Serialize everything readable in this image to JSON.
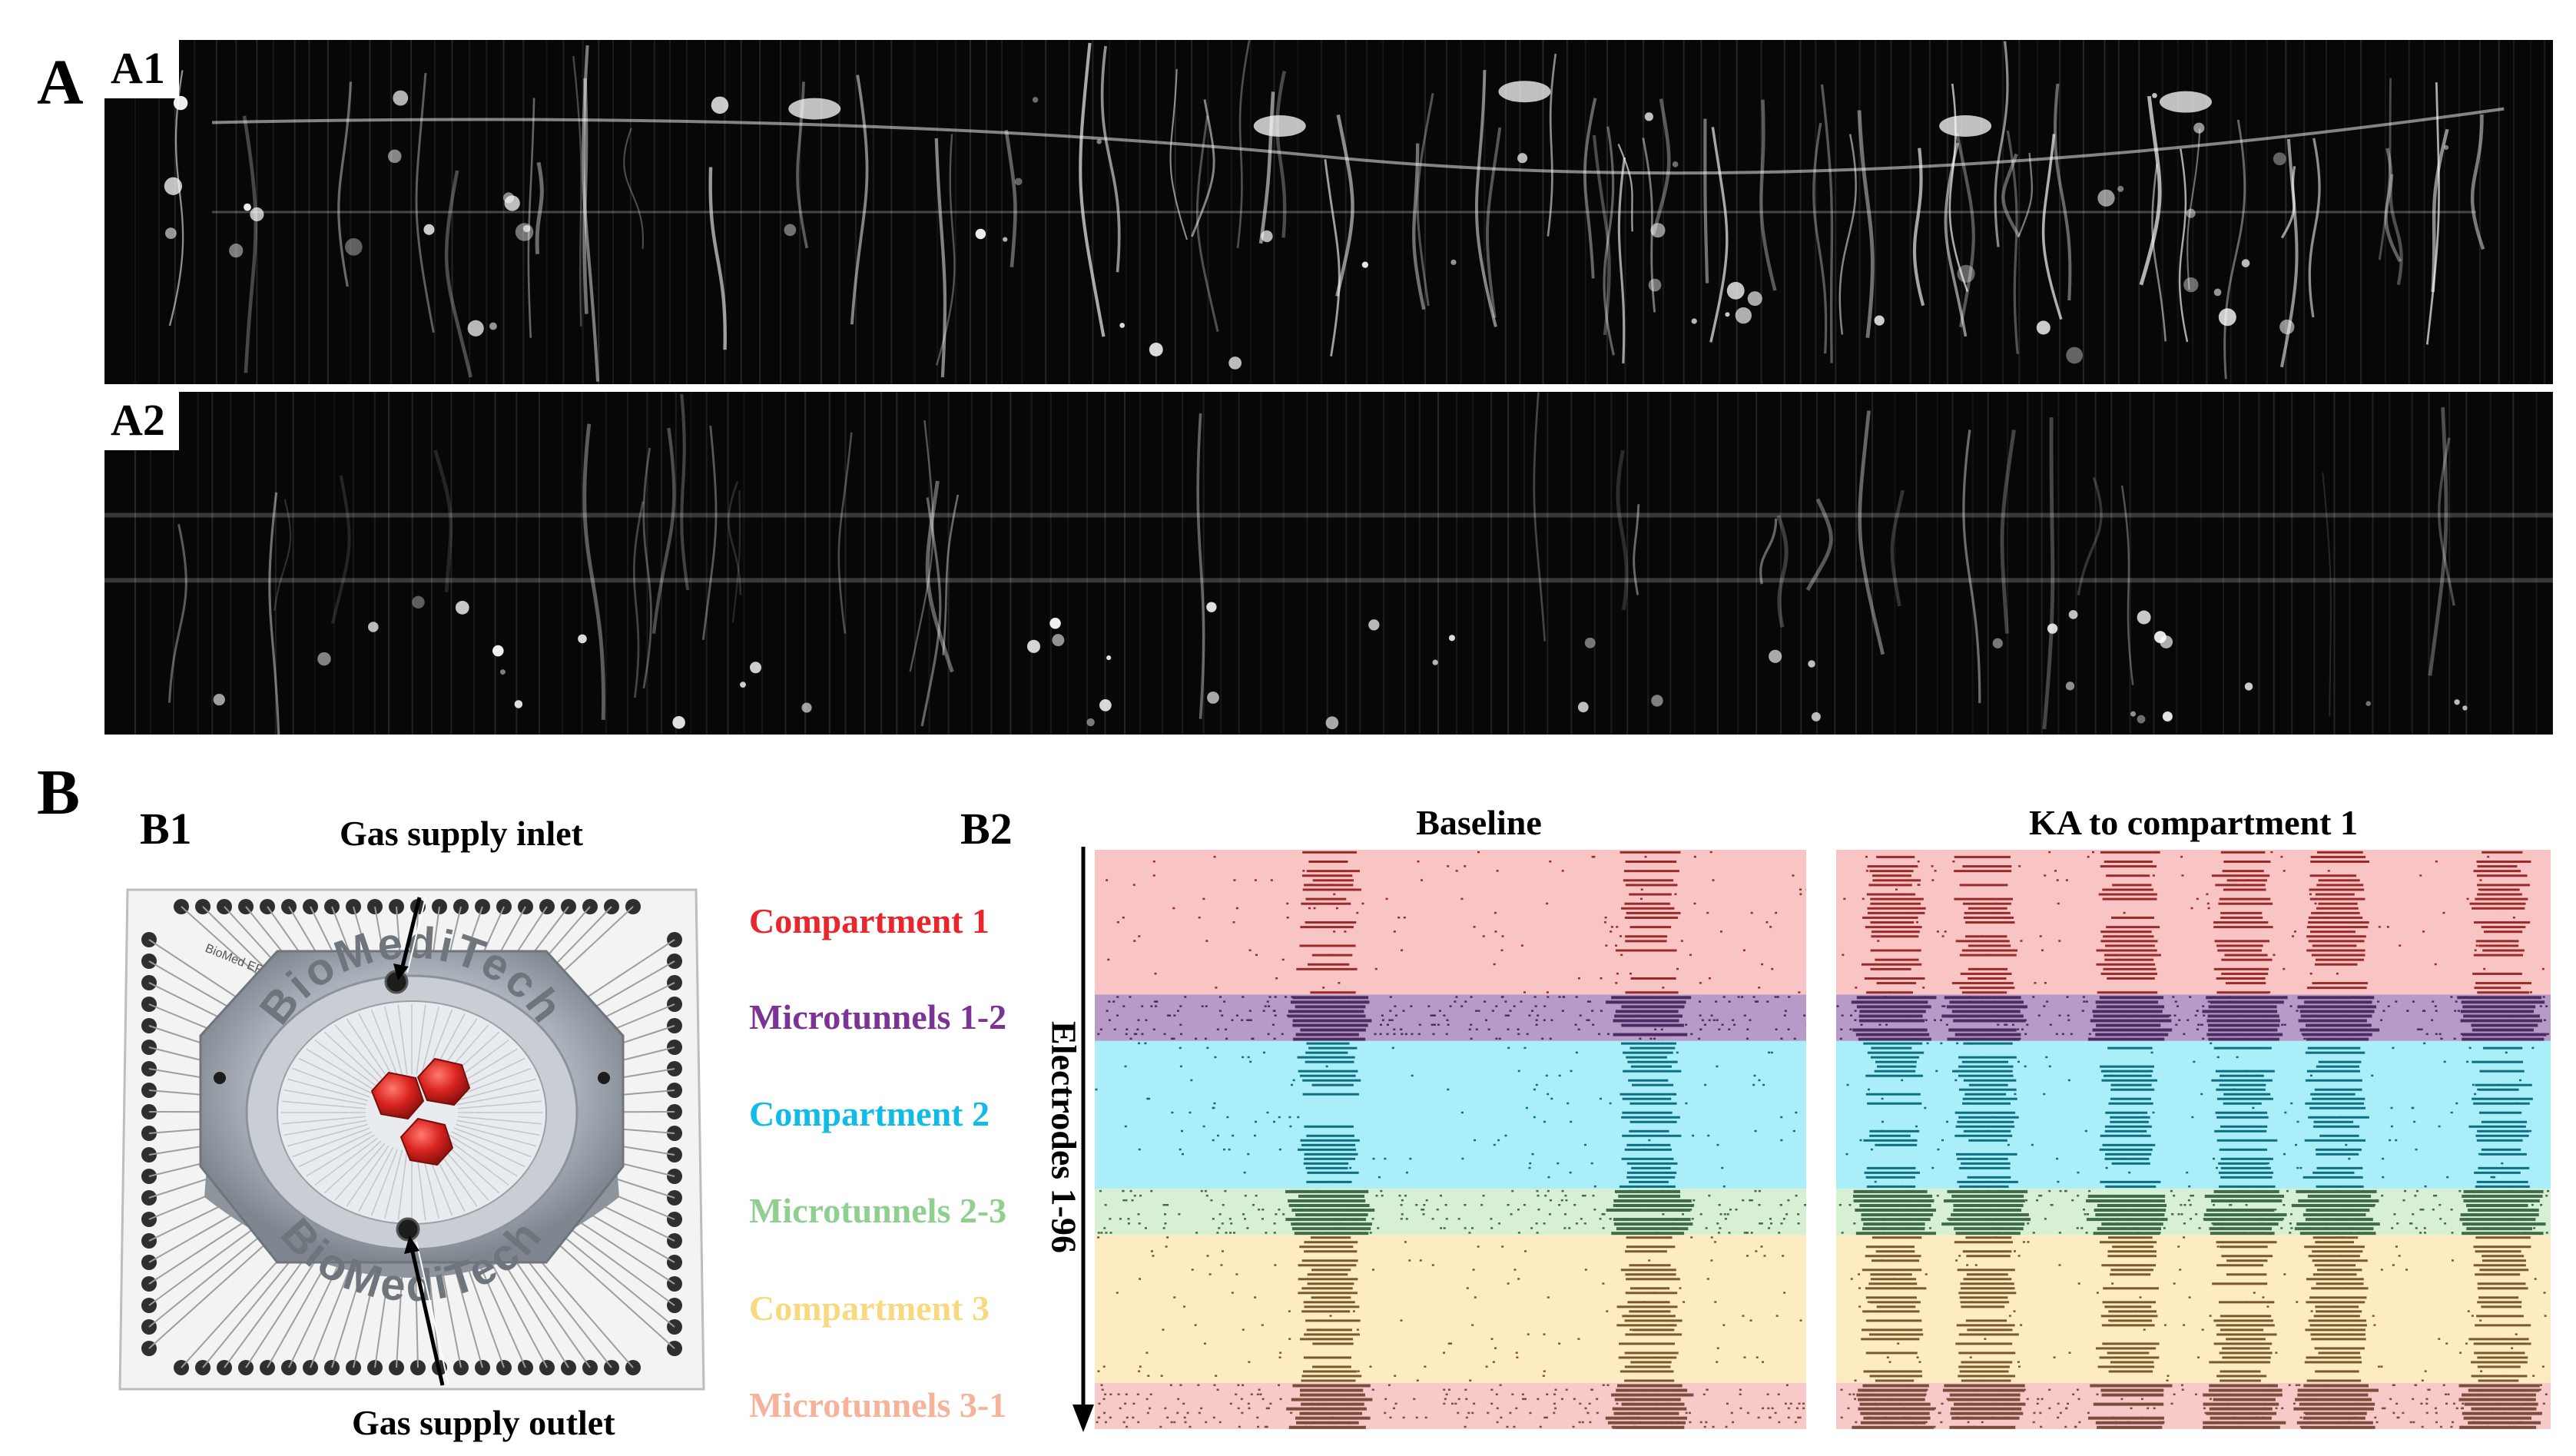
{
  "panel_a": {
    "letter": "A",
    "a1_label": "A1",
    "a2_label": "A2"
  },
  "panel_b": {
    "letter": "B",
    "b1_label": "B1",
    "b2_label": "B2",
    "device": {
      "gas_inlet_label": "Gas supply inlet",
      "gas_outlet_label": "Gas supply outlet",
      "brand_text": "BioMediTech",
      "small_print": "BioMed EPHA",
      "colors": {
        "ring": "#a9afb8",
        "ring_dark": "#7d838c",
        "wells": "#d9231f",
        "pads": "#2f2f2f"
      }
    }
  },
  "chart_data": {
    "type": "raster",
    "ylabel": "Electrodes 1-96",
    "panels": [
      {
        "title": "Baseline",
        "burst_positions": [
          0.33,
          0.78
        ]
      },
      {
        "title": "KA to compartment 1",
        "burst_positions": [
          0.08,
          0.21,
          0.41,
          0.57,
          0.7,
          0.93
        ]
      }
    ],
    "regions": [
      {
        "name": "Compartment 1",
        "label_color": "#e8262b",
        "bg": "#f9c4c4",
        "mark": "#9b2b2b",
        "electrode_fraction": 0.25
      },
      {
        "name": "Microtunnels 1-2",
        "label_color": "#7b3494",
        "bg": "#b79ac7",
        "mark": "#4e2c63",
        "electrode_fraction": 0.08
      },
      {
        "name": "Compartment 2",
        "label_color": "#10bce6",
        "bg": "#aaeefa",
        "mark": "#0d6f80",
        "electrode_fraction": 0.255
      },
      {
        "name": "Microtunnels 2-3",
        "label_color": "#8fcf8f",
        "bg": "#d7efd2",
        "mark": "#3f6b48",
        "electrode_fraction": 0.08
      },
      {
        "name": "Compartment 3",
        "label_color": "#f7da7f",
        "bg": "#fdecc2",
        "mark": "#7a5a2d",
        "electrode_fraction": 0.255
      },
      {
        "name": "Microtunnels 3-1",
        "label_color": "#f6b39b",
        "bg": "#f7c9c9",
        "mark": "#7c4c3c",
        "electrode_fraction": 0.08
      }
    ]
  }
}
